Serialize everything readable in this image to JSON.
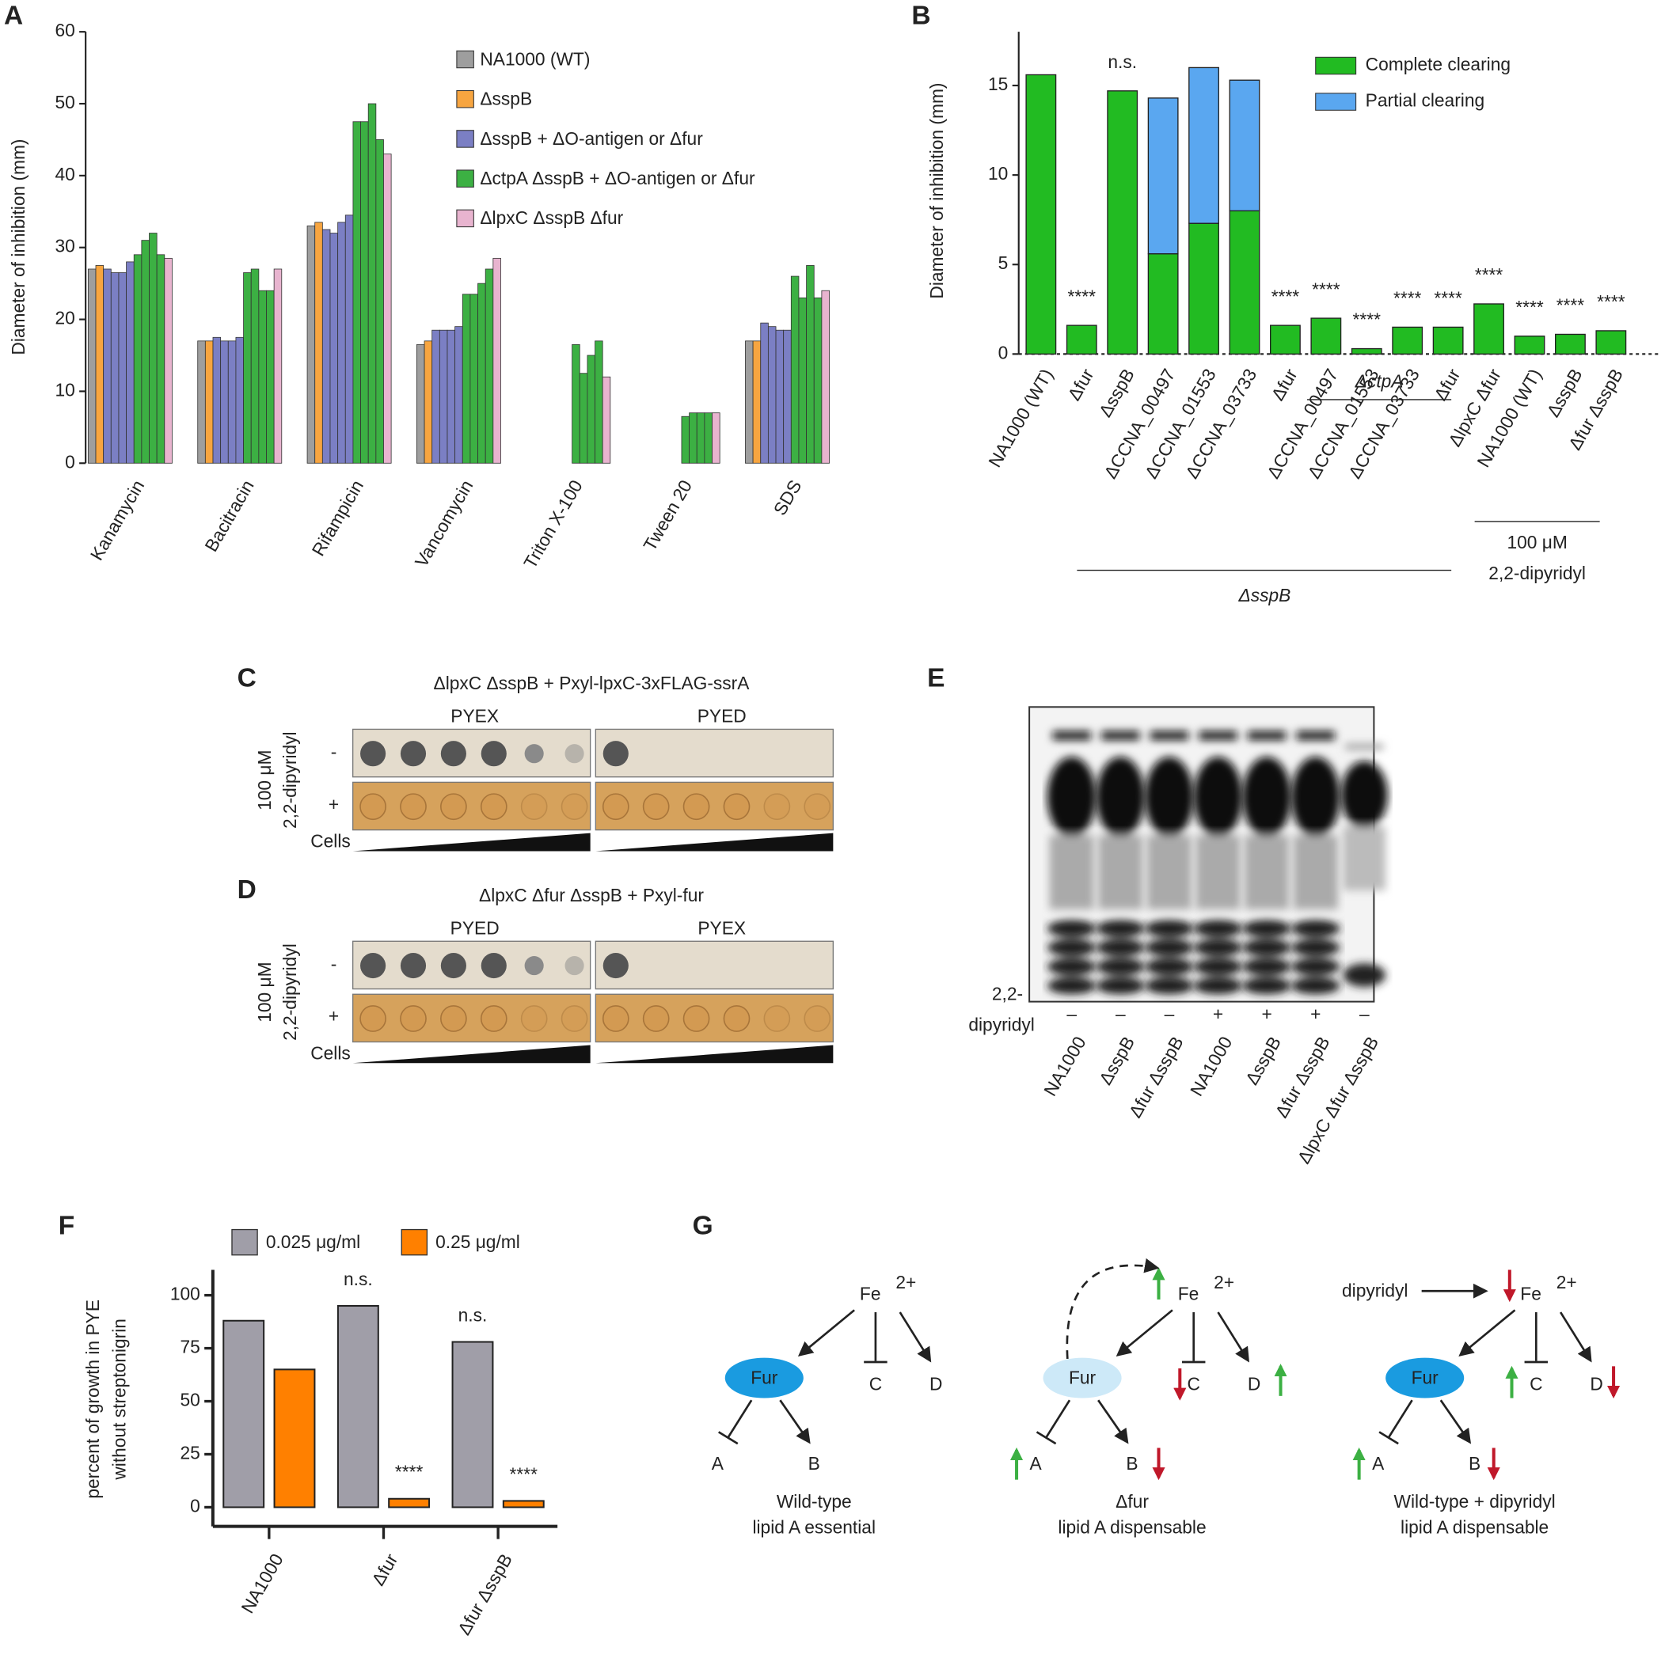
{
  "chart_data": [
    {
      "label": "A",
      "type": "bar",
      "y_label": "Diameter of inhibition (mm)",
      "categories": [
        "Kanamycin",
        "Bacitracin",
        "Rifampicin",
        "Vancomycin",
        "Triton X-100",
        "Tween 20",
        "SDS"
      ],
      "series": [
        {
          "name": "NA1000 (WT)",
          "color": "#9e9e9e",
          "values": [
            [
              27
            ],
            [
              17
            ],
            [
              33
            ],
            [
              16.5
            ],
            [
              0
            ],
            [
              0
            ],
            [
              17
            ]
          ]
        },
        {
          "name": "ΔsspB",
          "color": "#f7a540",
          "values": [
            [
              27.5
            ],
            [
              17
            ],
            [
              33.5
            ],
            [
              17
            ],
            [
              0
            ],
            [
              0
            ],
            [
              17
            ]
          ]
        },
        {
          "name": "ΔsspB + ΔO-antigen or Δfur",
          "color": "#7b7fc4",
          "values": [
            [
              27,
              26.5,
              26.5,
              28
            ],
            [
              17.5,
              17,
              17,
              17.5
            ],
            [
              32.5,
              32,
              33.5,
              34.5
            ],
            [
              18.5,
              18.5,
              18.5,
              19
            ],
            [
              0,
              0,
              0,
              0
            ],
            [
              0,
              0,
              0,
              0
            ],
            [
              19.5,
              19,
              18.5,
              18.5
            ]
          ]
        },
        {
          "name": "ΔctpA ΔsspB + ΔO-antigen or Δfur",
          "color": "#3cb043",
          "values": [
            [
              29,
              31,
              32,
              29
            ],
            [
              26.5,
              27,
              24,
              24
            ],
            [
              47.5,
              47.5,
              50,
              45
            ],
            [
              23.5,
              23.5,
              25,
              27
            ],
            [
              16.5,
              12.5,
              15,
              17
            ],
            [
              6.5,
              7,
              7,
              7
            ],
            [
              26,
              23,
              27.5,
              23
            ]
          ]
        },
        {
          "name": "ΔlpxC ΔsspB Δfur",
          "color": "#e8b4cf",
          "values": [
            [
              28.5
            ],
            [
              27
            ],
            [
              43
            ],
            [
              28.5
            ],
            [
              12
            ],
            [
              7
            ],
            [
              24
            ]
          ]
        }
      ],
      "ylim": [
        0,
        60
      ],
      "yticks": [
        0,
        10,
        20,
        30,
        40,
        50,
        60
      ]
    },
    {
      "label": "B",
      "type": "stacked_bar",
      "y_label": "Diameter of inhibition (mm)",
      "categories": [
        "NA1000 (WT)",
        "Δfur",
        "ΔsspB",
        "ΔCCNA_00497",
        "ΔCCNA_01553",
        "ΔCCNA_03733",
        "Δfur",
        "ΔCCNA_00497",
        "ΔCCNA_01553",
        "ΔCCNA_03733",
        "Δfur",
        "ΔlpxC Δfur",
        "NA1000 (WT)",
        "ΔsspB",
        "Δfur ΔsspB"
      ],
      "series": [
        {
          "name": "Complete clearing",
          "color": "#22bb22",
          "values": [
            15.6,
            1.6,
            14.7,
            5.6,
            7.3,
            8,
            1.6,
            2,
            0.3,
            1.5,
            1.5,
            2.8,
            1,
            1.1,
            1.3
          ]
        },
        {
          "name": "Partial clearing",
          "color": "#5aa7f0",
          "values": [
            0,
            0,
            0,
            8.7,
            8.7,
            7.3,
            0,
            0,
            0,
            0,
            0,
            0,
            0,
            0,
            0
          ]
        }
      ],
      "significance": [
        null,
        "****",
        "n.s.",
        null,
        null,
        null,
        "****",
        "****",
        "****",
        "****",
        "****",
        "****",
        "****",
        "****",
        "****"
      ],
      "group_labels": [
        "ΔctpA",
        "ΔsspB",
        "100 μM",
        "2,2-dipyridyl"
      ],
      "ylim": [
        0,
        18
      ],
      "yticks": [
        0,
        5,
        10,
        15
      ]
    },
    {
      "label": "F",
      "type": "bar",
      "y_label": [
        "percent of growth in PYE",
        "without streptonigrin"
      ],
      "categories": [
        "NA1000",
        "Δfur",
        "Δfur ΔsspB"
      ],
      "series": [
        {
          "name": "0.025 μg/ml",
          "color": "#a09ea8",
          "values": [
            88,
            95,
            78
          ],
          "significance": [
            null,
            "n.s.",
            "n.s."
          ]
        },
        {
          "name": "0.25 μg/ml",
          "color": "#ff8000",
          "values": [
            65,
            4,
            3
          ],
          "significance": [
            null,
            "****",
            "****"
          ]
        }
      ],
      "ylim": [
        0,
        110
      ],
      "yticks": [
        0,
        25,
        50,
        75,
        100
      ]
    }
  ],
  "panel_c": {
    "label": "C",
    "title": "ΔlpxC ΔsspB + Pxyl-lpxC-3xFLAG-ssrA",
    "media": [
      "PYEX",
      "PYED"
    ],
    "side_label": [
      "100 μM",
      "2,2-dipyridyl"
    ],
    "rows": [
      "-",
      "+"
    ],
    "wedge_label": "Cells"
  },
  "panel_d": {
    "label": "D",
    "title": "ΔlpxC Δfur ΔsspB + Pxyl-fur",
    "media": [
      "PYED",
      "PYEX"
    ],
    "side_label": [
      "100 μM",
      "2,2-dipyridyl"
    ],
    "rows": [
      "-",
      "+"
    ],
    "wedge_label": "Cells"
  },
  "panel_e": {
    "label": "E",
    "row_label": [
      "2,2-",
      "dipyridyl"
    ],
    "treatment": [
      "–",
      "–",
      "–",
      "+",
      "+",
      "+",
      "–"
    ],
    "lanes": [
      "NA1000",
      "ΔsspB",
      "Δfur ΔsspB",
      "NA1000",
      "ΔsspB",
      "Δfur ΔsspB",
      "ΔlpxC Δfur ΔsspB"
    ]
  },
  "panel_g": {
    "label": "G",
    "diagrams": [
      {
        "iron": "Fe",
        "charge": "2+",
        "regulator": "Fur",
        "targets": [
          "A",
          "B",
          "C",
          "D"
        ],
        "caption": [
          "Wild-type",
          "lipid A essential"
        ]
      },
      {
        "iron": "Fe",
        "charge": "2+",
        "regulator": "Fur",
        "targets": [
          "A",
          "B",
          "C",
          "D"
        ],
        "caption": [
          "Δfur",
          "lipid A dispensable"
        ]
      },
      {
        "iron": "Fe",
        "charge": "2+",
        "regulator": "Fur",
        "targets": [
          "A",
          "B",
          "C",
          "D"
        ],
        "caption": [
          "Wild-type + dipyridyl",
          "lipid A dispensable"
        ],
        "chelator": "dipyridyl"
      }
    ]
  }
}
